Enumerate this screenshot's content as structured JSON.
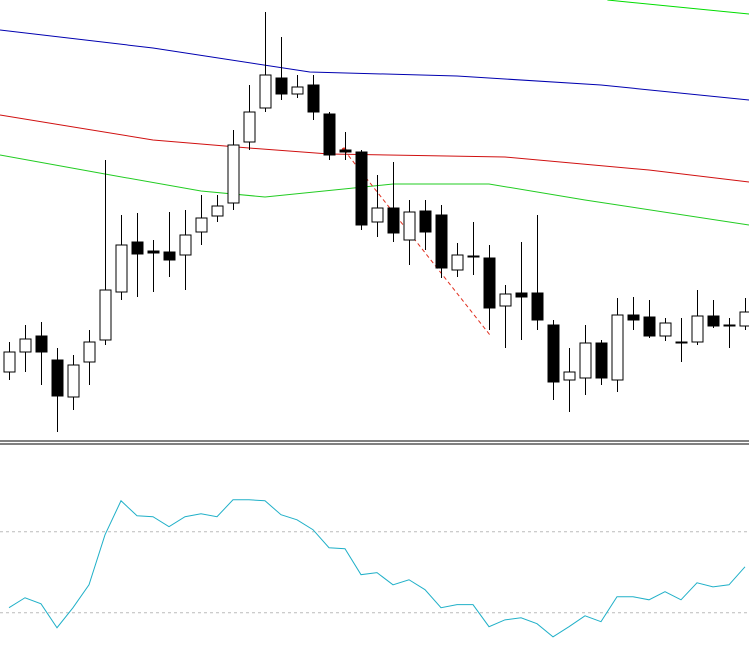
{
  "chart_data": [
    {
      "type": "candlestick",
      "xlim": [
        -0.5625,
        46.25
      ],
      "ylim": [
        0,
        440
      ],
      "up_color": "#ffffff",
      "down_color": "#000000",
      "wick_color": "#000000",
      "open": [
        68,
        88,
        104,
        80,
        43,
        78,
        100,
        148,
        198,
        189,
        188,
        185,
        208,
        224,
        237,
        298,
        332,
        362,
        346,
        355,
        326,
        290,
        288,
        218,
        232,
        200,
        229,
        225,
        170,
        184,
        182,
        134,
        147,
        147,
        115,
        60,
        62,
        97,
        60,
        125,
        123,
        104,
        98,
        98,
        124,
        115,
        114
      ],
      "high": [
        98,
        115,
        118,
        92,
        85,
        110,
        280,
        225,
        227,
        200,
        228,
        230,
        245,
        245,
        310,
        355,
        428,
        403,
        365,
        365,
        328,
        308,
        290,
        265,
        278,
        240,
        240,
        235,
        197,
        218,
        195,
        155,
        198,
        225,
        120,
        92,
        115,
        100,
        142,
        143,
        140,
        122,
        122,
        150,
        140,
        122,
        142
      ],
      "low": [
        60,
        68,
        55,
        8,
        30,
        55,
        95,
        140,
        143,
        148,
        163,
        150,
        195,
        218,
        230,
        290,
        328,
        340,
        342,
        320,
        280,
        280,
        210,
        203,
        198,
        175,
        190,
        162,
        163,
        165,
        110,
        92,
        100,
        110,
        40,
        28,
        45,
        55,
        48,
        110,
        102,
        99,
        78,
        95,
        112,
        92,
        110
      ],
      "close": [
        88,
        101,
        88,
        44,
        75,
        98,
        150,
        195,
        186,
        187,
        180,
        205,
        222,
        234,
        295,
        328,
        365,
        346,
        353,
        328,
        285,
        288,
        215,
        232,
        207,
        228,
        208,
        172,
        185,
        183,
        132,
        146,
        143,
        120,
        58,
        68,
        97,
        62,
        125,
        120,
        104,
        117,
        97,
        124,
        114,
        115,
        128
      ],
      "lines": [
        {
          "color": "#0000b0",
          "x": [
            -0.5625,
            9,
            18.8,
            28,
            37,
            46.25
          ],
          "values": [
            410,
            392,
            368,
            364,
            355,
            340
          ]
        },
        {
          "color": "#d01010",
          "x": [
            -0.5625,
            9,
            15,
            20,
            31,
            40,
            46.25
          ],
          "values": [
            325,
            300,
            292,
            286,
            283,
            270,
            258
          ]
        },
        {
          "color": "#22cc22",
          "x": [
            -0.5625,
            6,
            12,
            16,
            24,
            30,
            36,
            46.25
          ],
          "values": [
            285,
            266,
            249,
            243,
            256,
            256,
            240,
            215
          ]
        },
        {
          "color": "#00dd00",
          "x": [
            37.4,
            46.25
          ],
          "values": [
            440,
            426
          ]
        }
      ],
      "trendline": {
        "color": "#e03020",
        "x": [
          20.94,
          30.06
        ],
        "values": [
          290,
          105
        ]
      }
    },
    {
      "type": "line",
      "xlim": [
        -0.5625,
        46.25
      ],
      "ylim": [
        4,
        100
      ],
      "color": "#20b0c8",
      "levels": [
        70,
        30
      ],
      "values": [
        32.5,
        37.4,
        34.4,
        22.6,
        32.5,
        43.8,
        68.5,
        85.3,
        77.9,
        77.4,
        72.5,
        77.4,
        78.9,
        77.4,
        85.8,
        85.8,
        85.3,
        78.4,
        75.9,
        71.0,
        62.1,
        61.6,
        48.8,
        49.8,
        43.8,
        46.3,
        41.4,
        32.5,
        34.0,
        34.0,
        23.1,
        26.5,
        27.5,
        24.6,
        18.1,
        23.1,
        28.5,
        25.6,
        37.9,
        37.9,
        36.4,
        40.4,
        36.4,
        44.8,
        42.8,
        43.8,
        52.7
      ]
    }
  ]
}
